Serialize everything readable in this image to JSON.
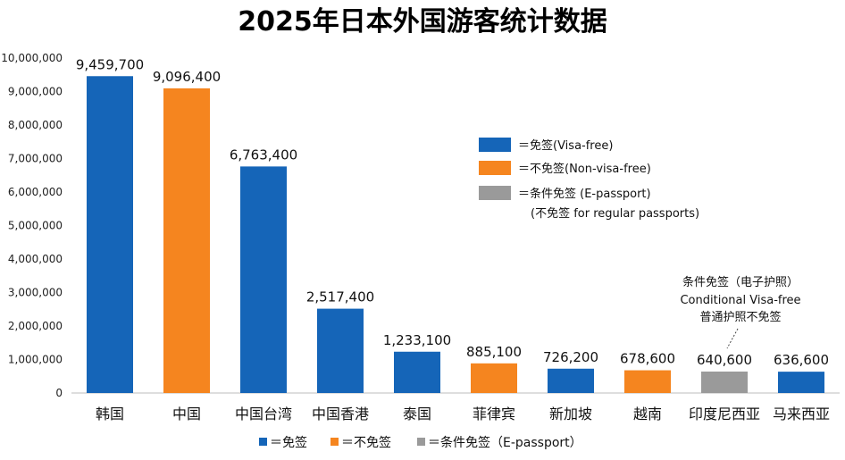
{
  "chart_data": {
    "type": "bar",
    "title": "2025年日本外国游客统计数据",
    "categories": [
      "韩国",
      "中国",
      "中国台湾",
      "中国香港",
      "泰国",
      "菲律宾",
      "新加坡",
      "越南",
      "印度尼西亚",
      "马来西亚"
    ],
    "values": [
      9459700,
      9096400,
      6763400,
      2517400,
      1233100,
      885100,
      726200,
      678600,
      640600,
      636600
    ],
    "value_labels": [
      "9,459,700",
      "9,096,400",
      "6,763,400",
      "2,517,400",
      "1,233,100",
      "885,100",
      "726,200",
      "678,600",
      "640,600",
      "636,600"
    ],
    "visa_status": [
      "visa-free",
      "non-visa-free",
      "visa-free",
      "visa-free",
      "visa-free",
      "non-visa-free",
      "visa-free",
      "non-visa-free",
      "conditional",
      "visa-free"
    ],
    "ylim": [
      0,
      10000000
    ],
    "yticks": [
      0,
      1000000,
      2000000,
      3000000,
      4000000,
      5000000,
      6000000,
      7000000,
      8000000,
      9000000,
      10000000
    ],
    "ytick_labels": [
      "0",
      "1,000,000",
      "2,000,000",
      "3,000,000",
      "4,000,000",
      "5,000,000",
      "6,000,000",
      "7,000,000",
      "8,000,000",
      "9,000,000",
      "10,000,000"
    ],
    "grid": false,
    "colors": {
      "visa-free": "#1565b8",
      "non-visa-free": "#f5851f",
      "conditional": "#9a9a9a"
    },
    "legend": {
      "placement": "upper-right",
      "entries": [
        {
          "key": "visa-free",
          "label": "＝免签(Visa-free)"
        },
        {
          "key": "non-visa-free",
          "label": "＝不免签(Non-visa-free)"
        },
        {
          "key": "conditional",
          "label": "＝条件免签 (E-passport)",
          "sublabel": "(不免签 for regular passports)"
        }
      ]
    },
    "annotation": {
      "target": "印度尼西亚",
      "lines": [
        "条件免签（电子护照）",
        "Conditional Visa-free",
        "普通护照不免签"
      ]
    },
    "bottom_legend": [
      {
        "key": "visa-free",
        "label": "＝免签"
      },
      {
        "key": "non-visa-free",
        "label": "＝不免签"
      },
      {
        "key": "conditional",
        "label": "＝条件免签（E-passport）"
      }
    ]
  }
}
